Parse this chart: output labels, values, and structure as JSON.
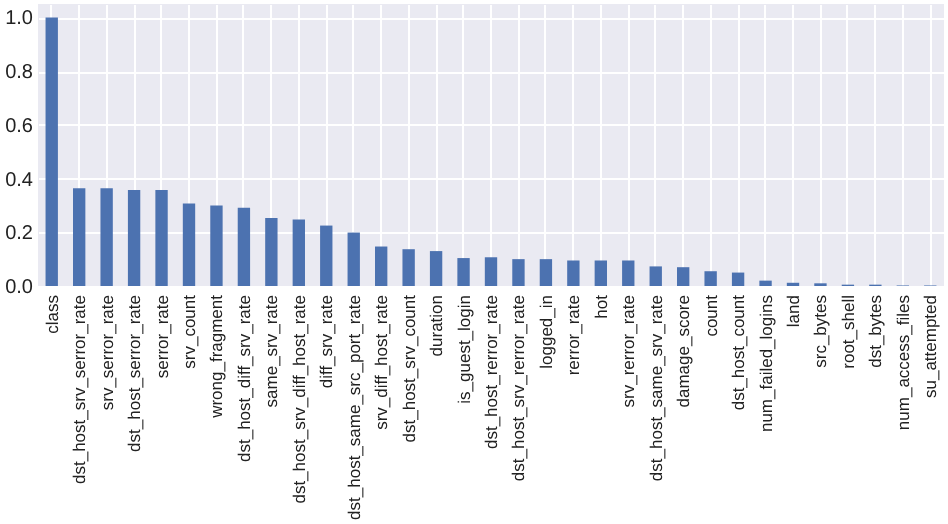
{
  "chart_data": {
    "type": "bar",
    "categories": [
      "class",
      "dst_host_srv_serror_rate",
      "srv_serror_rate",
      "dst_host_serror_rate",
      "serror_rate",
      "srv_count",
      "wrong_fragment",
      "dst_host_diff_srv_rate",
      "same_srv_rate",
      "dst_host_srv_diff_host_rate",
      "diff_srv_rate",
      "dst_host_same_src_port_rate",
      "srv_diff_host_rate",
      "dst_host_srv_count",
      "duration",
      "is_guest_login",
      "dst_host_rerror_rate",
      "dst_host_srv_rerror_rate",
      "logged_in",
      "rerror_rate",
      "hot",
      "srv_rerror_rate",
      "dst_host_same_srv_rate",
      "damage_score",
      "count",
      "dst_host_count",
      "num_failed_logins",
      "land",
      "src_bytes",
      "root_shell",
      "dst_bytes",
      "num_access_files",
      "su_attempted"
    ],
    "values": [
      1.0,
      0.364,
      0.364,
      0.357,
      0.357,
      0.307,
      0.3,
      0.291,
      0.253,
      0.248,
      0.225,
      0.199,
      0.147,
      0.137,
      0.13,
      0.104,
      0.107,
      0.1,
      0.1,
      0.095,
      0.095,
      0.095,
      0.073,
      0.07,
      0.055,
      0.05,
      0.02,
      0.012,
      0.01,
      0.005,
      0.005,
      0.002,
      0.002
    ],
    "color": "#4c72b0",
    "ylim": [
      0,
      1.05
    ],
    "yticks": [
      {
        "value": 0,
        "label": "0.0"
      },
      0.2,
      0.4,
      0.6,
      0.8,
      {
        "value": 1,
        "label": "1.0"
      }
    ],
    "grid": true
  }
}
